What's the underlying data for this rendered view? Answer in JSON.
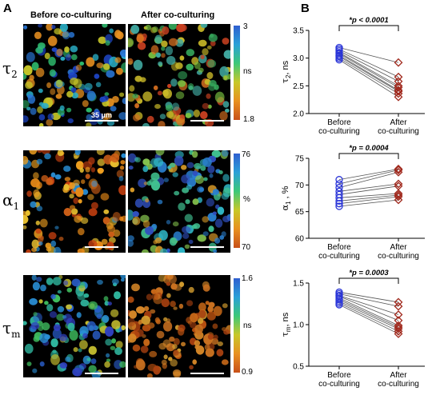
{
  "panels": {
    "a": "A",
    "b": "B"
  },
  "columns": {
    "before": "Before co-culturing",
    "after": "After co-culturing"
  },
  "rows": [
    {
      "symbol": "τ",
      "sub": "2",
      "cbar_max": "3",
      "cbar_unit": "ns",
      "cbar_min": "1.8",
      "gradient": [
        "#2f5fd0",
        "#2aa0d8",
        "#3cc878",
        "#c8c828",
        "#e89020",
        "#c85018"
      ]
    },
    {
      "symbol": "α",
      "sub": "1",
      "cbar_max": "76",
      "cbar_unit": "%",
      "cbar_min": "70",
      "gradient": [
        "#2f5fd0",
        "#2aa0d8",
        "#3cc878",
        "#c8c828",
        "#e89020",
        "#c85018"
      ]
    },
    {
      "symbol": "τ",
      "sub": "m",
      "cbar_max": "1.6",
      "cbar_unit": "ns",
      "cbar_min": "0.9",
      "gradient": [
        "#2f5fd0",
        "#2aa0d8",
        "#3cc878",
        "#c8c828",
        "#e89020",
        "#c85018"
      ]
    }
  ],
  "scalebar_label": "35 μm",
  "colors": {
    "before_marker": "#2a35d8",
    "after_marker": "#a0281c",
    "connector": "#555555"
  },
  "chart_data": [
    {
      "type": "scatter",
      "ylabel_symbol": "τ",
      "ylabel_sub": "2",
      "ylabel_unit": ", ns",
      "categories": [
        "Before\nco-culturing",
        "After\nco-culturing"
      ],
      "ylim": [
        2.0,
        3.5
      ],
      "yticks": [
        "2.0",
        "2.5",
        "3.0",
        "3.5"
      ],
      "annotation": "*p < 0.0001",
      "series": [
        {
          "values": [
            3.19,
            3.16,
            3.13,
            3.1,
            3.08,
            3.05,
            3.03,
            3.0,
            2.97
          ]
        },
        {
          "values": [
            2.92,
            2.66,
            2.58,
            2.5,
            2.47,
            2.42,
            2.4,
            2.36,
            2.3
          ]
        }
      ]
    },
    {
      "type": "scatter",
      "ylabel_symbol": "α",
      "ylabel_sub": "1",
      "ylabel_unit": " , %",
      "categories": [
        "Before\nco-culturing",
        "After\nco-culturing"
      ],
      "ylim": [
        60,
        75
      ],
      "yticks": [
        "60",
        "65",
        "70",
        "75"
      ],
      "annotation": "*p = 0.0004",
      "series": [
        {
          "values": [
            71.0,
            70.2,
            69.5,
            68.8,
            68.2,
            67.6,
            67.0,
            66.5,
            66.0
          ]
        },
        {
          "values": [
            73.0,
            72.8,
            72.4,
            70.2,
            69.8,
            68.4,
            68.1,
            67.8,
            67.2
          ]
        }
      ]
    },
    {
      "type": "scatter",
      "ylabel_symbol": "τ",
      "ylabel_sub": "m",
      "ylabel_unit": ", ns",
      "categories": [
        "Before\nco-culturing",
        "After\nco-culturing"
      ],
      "ylim": [
        0.5,
        1.5
      ],
      "yticks": [
        "0.5",
        "1.0",
        "1.5"
      ],
      "annotation": "*p = 0.0003",
      "series": [
        {
          "values": [
            1.39,
            1.37,
            1.35,
            1.34,
            1.32,
            1.3,
            1.28,
            1.26,
            1.24
          ]
        },
        {
          "values": [
            1.27,
            1.22,
            1.12,
            1.05,
            0.99,
            0.97,
            0.95,
            0.92,
            0.89
          ]
        }
      ]
    }
  ]
}
